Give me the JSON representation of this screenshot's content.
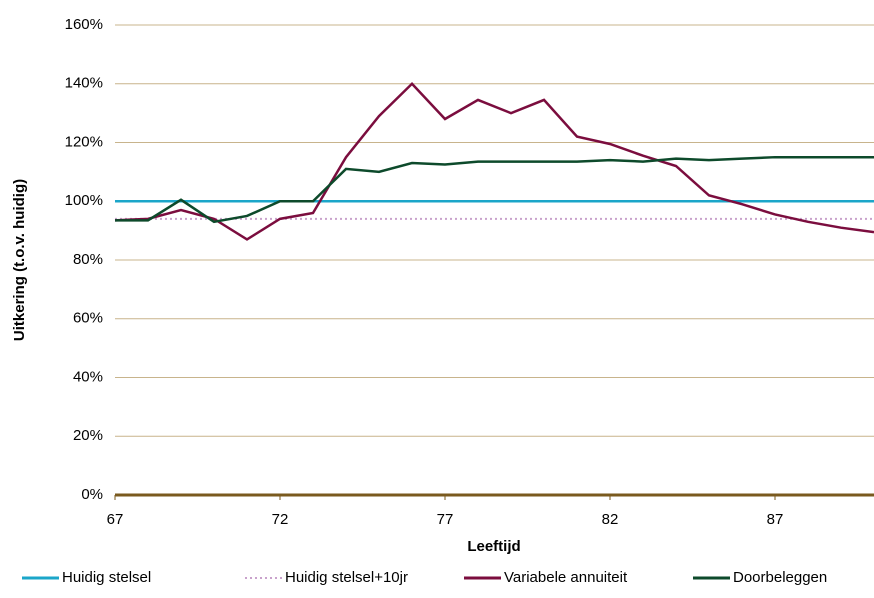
{
  "chart_data": {
    "type": "line",
    "x_label": "Leeftijd",
    "y_label": "Uitkering (t.o.v. huidig)",
    "x": [
      67,
      68,
      69,
      70,
      71,
      72,
      73,
      74,
      75,
      76,
      77,
      78,
      79,
      80,
      81,
      82,
      83,
      84,
      85,
      86,
      87,
      88,
      89,
      90
    ],
    "xlim": [
      67,
      90
    ],
    "xticks": [
      67,
      72,
      77,
      82,
      87
    ],
    "ylim": [
      0,
      160
    ],
    "yticks": [
      {
        "value": 0,
        "label": "0%"
      },
      {
        "value": 20,
        "label": "20%"
      },
      {
        "value": 40,
        "label": "40%"
      },
      {
        "value": 60,
        "label": "60%"
      },
      {
        "value": 80,
        "label": "80%"
      },
      {
        "value": 100,
        "label": "100%"
      },
      {
        "value": 120,
        "label": "120%"
      },
      {
        "value": 140,
        "label": "140%"
      },
      {
        "value": 160,
        "label": "160%"
      }
    ],
    "grid": true,
    "legend": "bottom",
    "series": [
      {
        "name": "Huidig stelsel",
        "color": "#1ba6c9",
        "style": "solid",
        "values": [
          100,
          100,
          100,
          100,
          100,
          100,
          100,
          100,
          100,
          100,
          100,
          100,
          100,
          100,
          100,
          100,
          100,
          100,
          100,
          100,
          100,
          100,
          100,
          100
        ]
      },
      {
        "name": "Huidig stelsel+10jr",
        "color": "#c9a2cc",
        "style": "dotted",
        "values": [
          94,
          94,
          94,
          94,
          94,
          94,
          94,
          94,
          94,
          94,
          94,
          94,
          94,
          94,
          94,
          94,
          94,
          94,
          94,
          94,
          94,
          94,
          94,
          94
        ]
      },
      {
        "name": "Variabele annuiteit",
        "color": "#7b0d3e",
        "style": "solid",
        "values": [
          93.5,
          94,
          97,
          94,
          87,
          94,
          96,
          115,
          129,
          140,
          128,
          134.5,
          130,
          134.5,
          122,
          119.5,
          115.5,
          112,
          102,
          99,
          95.5,
          93,
          91,
          89.5
        ]
      },
      {
        "name": "Doorbeleggen",
        "color": "#0d4a2b",
        "style": "solid",
        "values": [
          93.5,
          93.5,
          100.5,
          93,
          95,
          100,
          100,
          111,
          110,
          113,
          112.5,
          113.5,
          113.5,
          113.5,
          113.5,
          114,
          113.5,
          114.5,
          114,
          114.5,
          115,
          115,
          115,
          115
        ]
      }
    ]
  }
}
